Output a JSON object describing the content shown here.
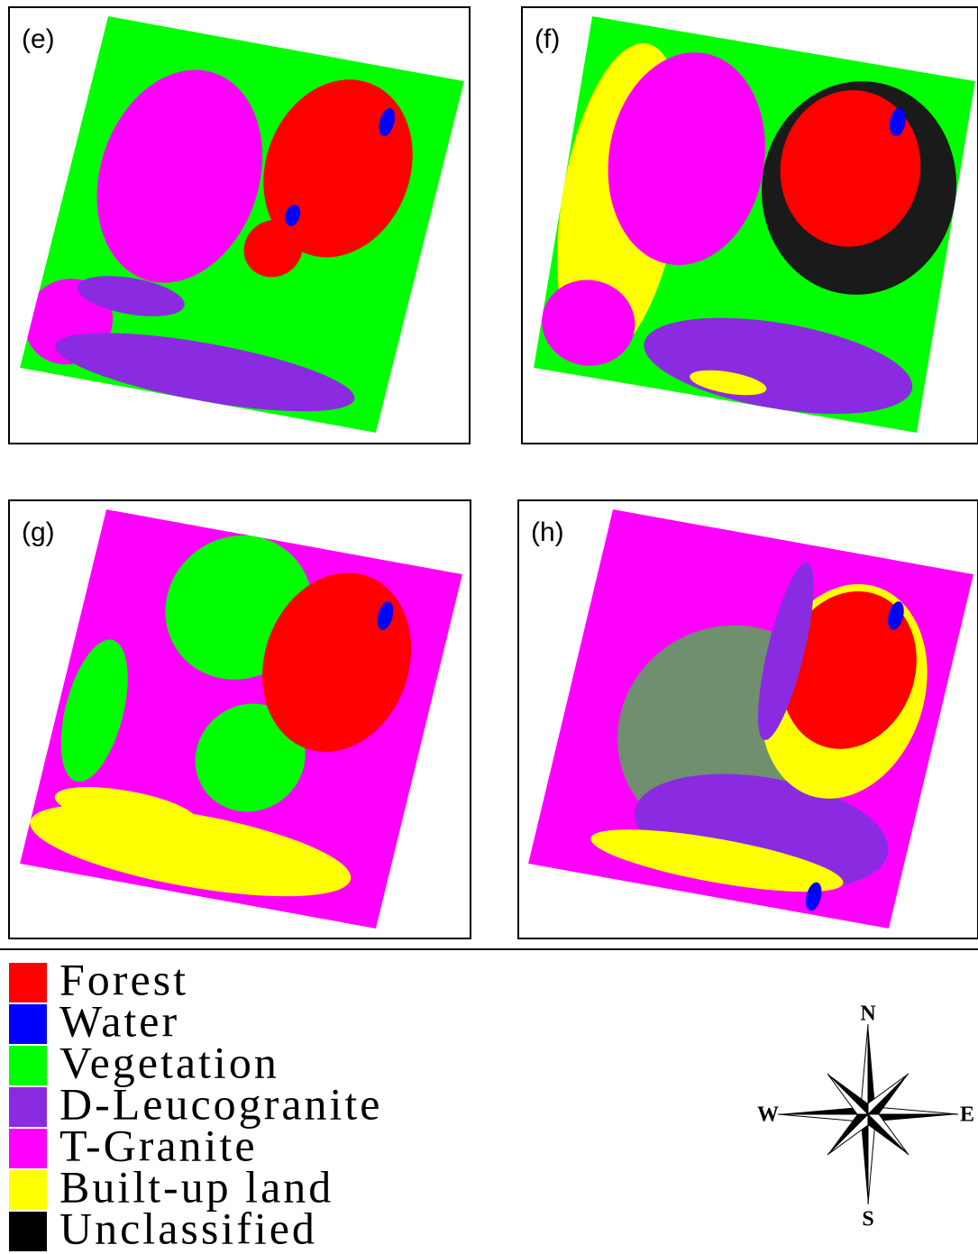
{
  "panels": [
    {
      "label": "(e)"
    },
    {
      "label": "(f)"
    },
    {
      "label": "(g)"
    },
    {
      "label": "(h)"
    }
  ],
  "legend": [
    {
      "label": "Forest",
      "color": "#ff0000"
    },
    {
      "label": "Water",
      "color": "#0000ff"
    },
    {
      "label": "Vegetation",
      "color": "#00ff00"
    },
    {
      "label": "D-Leucogranite",
      "color": "#8a2be2"
    },
    {
      "label": "T-Granite",
      "color": "#ff00ff"
    },
    {
      "label": "Built-up land",
      "color": "#ffff00"
    },
    {
      "label": "Unclassified",
      "color": "#000000"
    }
  ],
  "compass": {
    "n": "N",
    "s": "S",
    "e": "E",
    "w": "W"
  }
}
